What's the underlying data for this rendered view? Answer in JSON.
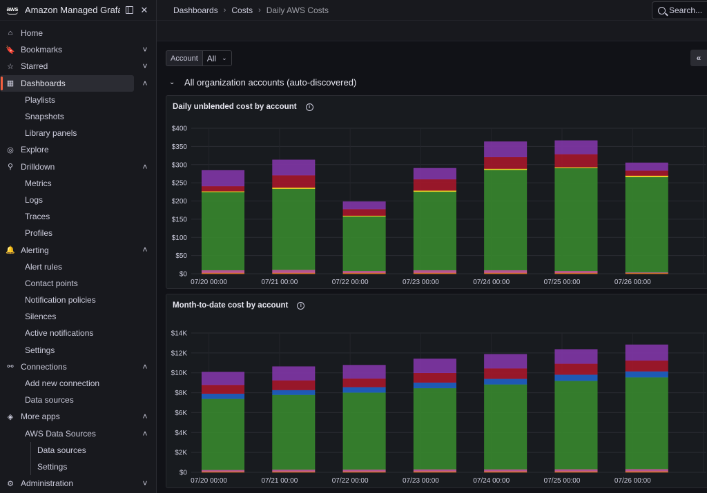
{
  "brand": {
    "title": "Amazon Managed Grafa...",
    "logo_text": "aws"
  },
  "sidebar": {
    "items": [
      {
        "label": "Home",
        "icon": "home-icon",
        "level": 0
      },
      {
        "label": "Bookmarks",
        "icon": "bookmark-icon",
        "level": 0,
        "chevron": "down"
      },
      {
        "label": "Starred",
        "icon": "star-icon",
        "level": 0,
        "chevron": "down"
      },
      {
        "label": "Dashboards",
        "icon": "dashboards-icon",
        "level": 0,
        "chevron": "up",
        "active": true
      },
      {
        "label": "Playlists",
        "level": 1
      },
      {
        "label": "Snapshots",
        "level": 1
      },
      {
        "label": "Library panels",
        "level": 1
      },
      {
        "label": "Explore",
        "icon": "compass-icon",
        "level": 0
      },
      {
        "label": "Drilldown",
        "icon": "drilldown-icon",
        "level": 0,
        "chevron": "up"
      },
      {
        "label": "Metrics",
        "level": 1
      },
      {
        "label": "Logs",
        "level": 1
      },
      {
        "label": "Traces",
        "level": 1
      },
      {
        "label": "Profiles",
        "level": 1
      },
      {
        "label": "Alerting",
        "icon": "bell-icon",
        "level": 0,
        "chevron": "up"
      },
      {
        "label": "Alert rules",
        "level": 1
      },
      {
        "label": "Contact points",
        "level": 1
      },
      {
        "label": "Notification policies",
        "level": 1
      },
      {
        "label": "Silences",
        "level": 1
      },
      {
        "label": "Active notifications",
        "level": 1
      },
      {
        "label": "Settings",
        "level": 1
      },
      {
        "label": "Connections",
        "icon": "connections-icon",
        "level": 0,
        "chevron": "up"
      },
      {
        "label": "Add new connection",
        "level": 1
      },
      {
        "label": "Data sources",
        "level": 1
      },
      {
        "label": "More apps",
        "icon": "layers-icon",
        "level": 0,
        "chevron": "up"
      },
      {
        "label": "AWS Data Sources",
        "level": 1,
        "chevron": "up"
      },
      {
        "label": "Data sources",
        "level": 2
      },
      {
        "label": "Settings",
        "level": 2
      },
      {
        "label": "Administration",
        "icon": "gear-icon",
        "level": 0,
        "chevron": "down"
      }
    ]
  },
  "breadcrumb": {
    "items": [
      "Dashboards",
      "Costs",
      "Daily AWS Costs"
    ]
  },
  "search": {
    "placeholder": "Search..."
  },
  "variables": {
    "account_label": "Account",
    "account_value": "All"
  },
  "row": {
    "title": "All organization accounts (auto-discovered)"
  },
  "colors": {
    "green": "#37872d",
    "red": "#a5172a",
    "purple": "#8136a6",
    "blue": "#1f60c4",
    "yellow": "#fade2a",
    "pink": "#c75b9d",
    "orange": "#e0752d"
  },
  "chart_data": [
    {
      "type": "bar",
      "stacked": true,
      "title": "Daily unblended cost by account",
      "categories": [
        "07/20 00:00",
        "07/21 00:00",
        "07/22 00:00",
        "07/23 00:00",
        "07/24 00:00",
        "07/25 00:00",
        "07/26 00:00"
      ],
      "y_ticks": [
        "$0",
        "$50",
        "$100",
        "$150",
        "$200",
        "$250",
        "$300",
        "$350",
        "$400"
      ],
      "ylim": [
        0,
        400
      ],
      "series": [
        {
          "color": "#e0752d",
          "values": [
            3,
            3,
            3,
            3,
            3,
            3,
            3
          ]
        },
        {
          "color": "#c75b9d",
          "values": [
            7,
            8,
            5,
            7,
            7,
            5,
            1
          ]
        },
        {
          "color": "#37872d",
          "values": [
            215,
            223,
            150,
            216,
            276,
            283,
            262
          ]
        },
        {
          "color": "#fade2a",
          "values": [
            2,
            3,
            2,
            3,
            3,
            2,
            4
          ]
        },
        {
          "color": "#a5172a",
          "values": [
            14,
            34,
            18,
            31,
            32,
            36,
            14
          ]
        },
        {
          "color": "#8136a6",
          "values": [
            43,
            42,
            20,
            30,
            42,
            37,
            21
          ]
        }
      ]
    },
    {
      "type": "bar",
      "stacked": true,
      "title": "Month-to-date cost by account",
      "categories": [
        "07/20 00:00",
        "07/21 00:00",
        "07/22 00:00",
        "07/23 00:00",
        "07/24 00:00",
        "07/25 00:00",
        "07/26 00:00"
      ],
      "y_ticks": [
        "$0",
        "$2K",
        "$4K",
        "$6K",
        "$8K",
        "$10K",
        "$12K",
        "$14K"
      ],
      "ylim": [
        0,
        14000
      ],
      "series": [
        {
          "color": "#e0752d",
          "values": [
            100,
            100,
            100,
            110,
            110,
            110,
            120
          ]
        },
        {
          "color": "#c75b9d",
          "values": [
            150,
            180,
            190,
            200,
            200,
            210,
            220
          ]
        },
        {
          "color": "#37872d",
          "values": [
            7150,
            7520,
            7740,
            8160,
            8540,
            8890,
            9220
          ]
        },
        {
          "color": "#1f60c4",
          "values": [
            520,
            480,
            550,
            570,
            560,
            620,
            600
          ]
        },
        {
          "color": "#a5172a",
          "values": [
            880,
            980,
            860,
            960,
            1050,
            1100,
            1100
          ]
        },
        {
          "color": "#8136a6",
          "values": [
            1280,
            1360,
            1330,
            1400,
            1400,
            1420,
            1560
          ]
        }
      ]
    }
  ]
}
